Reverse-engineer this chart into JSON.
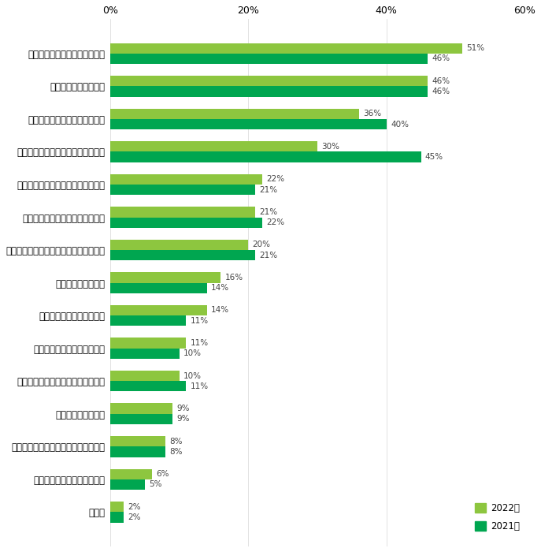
{
  "categories": [
    "自由に使えるお金が欲しいから",
    "生活費が足りないから",
    "空き時間を有効に使いたいから",
    "コロナ禍によって収入が減ったから",
    "まとまった収入が必要になったから",
    "いろいろな仕事を経験したいから",
    "趣味や好きなことでお金を稼ぎたいから",
    "視野を広げたいから",
    "失業したときの保険として",
    "スキルアップを図りたいから",
    "残業時間の削減で収入が減ったから",
    "人脈を広げたいから",
    "将来の起業・就職・転職に向けた準備",
    "やってみたい仕事があるから",
    "その他"
  ],
  "values_2022": [
    51,
    46,
    36,
    30,
    22,
    21,
    20,
    16,
    14,
    11,
    10,
    9,
    8,
    6,
    2
  ],
  "values_2021": [
    46,
    46,
    40,
    45,
    21,
    22,
    21,
    14,
    11,
    10,
    11,
    9,
    8,
    5,
    2
  ],
  "color_2022": "#8dc63f",
  "color_2021": "#00a650",
  "xlim": [
    0,
    60
  ],
  "xticks": [
    0,
    20,
    40,
    60
  ],
  "xticklabels": [
    "0%",
    "20%",
    "40%",
    "60%"
  ],
  "bar_height": 0.32,
  "figsize": [
    6.87,
    7.0
  ],
  "dpi": 100,
  "legend_labels": [
    "2022年",
    "2021年"
  ],
  "background_color": "#ffffff",
  "label_fontsize": 8.5,
  "tick_fontsize": 9,
  "value_fontsize": 7.5
}
